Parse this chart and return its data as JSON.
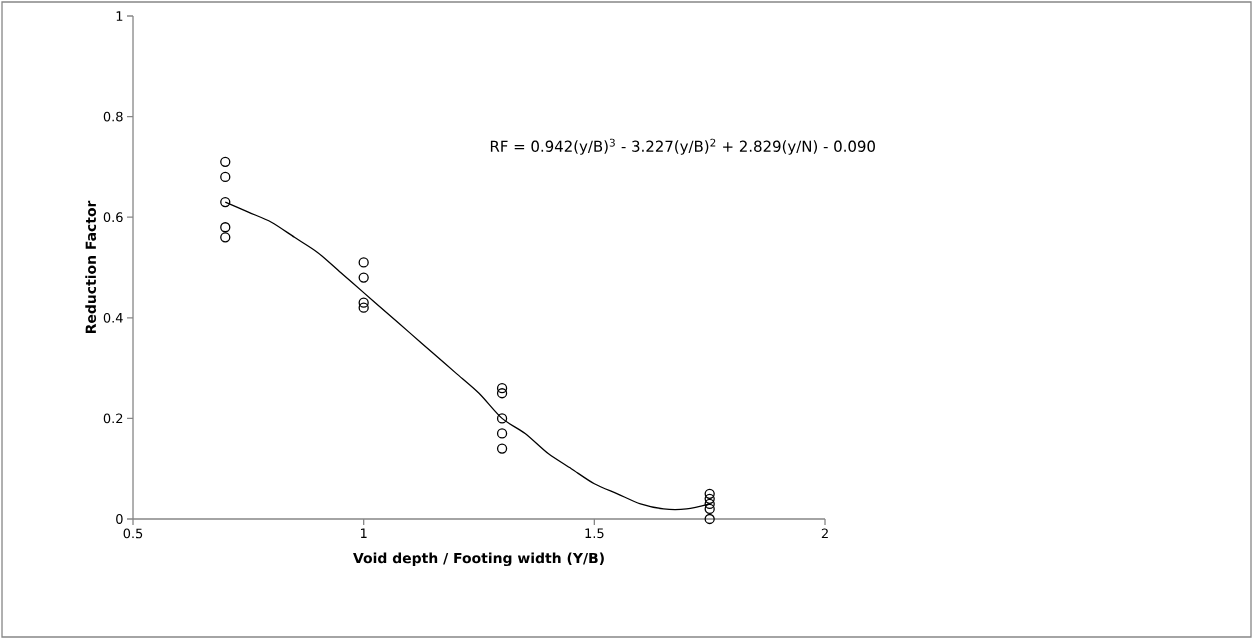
{
  "chart_data": {
    "type": "scatter",
    "xlabel": "Void depth / Footing width (Y/B)",
    "ylabel": "Reduction Factor",
    "annotations": [
      "RF = 0.942(y/B)$^{3}$ - 3.227(y/B)$^{2}$ + 2.829(y/N) - 0.090"
    ],
    "xlim": [
      0.5,
      2
    ],
    "xticks": [
      0.5,
      1,
      1.5,
      2
    ],
    "ylim": [
      0,
      1
    ],
    "yticks": [
      0,
      0.2,
      0.4,
      0.6,
      0.8,
      1
    ],
    "grid": false,
    "series": [
      {
        "color": "#000000",
        "marker": "circle",
        "x": [
          0.7,
          0.7,
          0.7,
          0.7,
          0.7,
          1,
          1,
          1,
          1,
          1.3,
          1.3,
          1.3,
          1.3,
          1.3,
          1.75,
          1.75,
          1.75,
          1.75,
          1.75
        ],
        "values": [
          0.71,
          0.68,
          0.63,
          0.58,
          0.56,
          0.51,
          0.48,
          0.43,
          0.42,
          0.26,
          0.25,
          0.2,
          0.17,
          0.14,
          0.05,
          0.04,
          0.03,
          0.02,
          0.0
        ]
      },
      {
        "type": "line",
        "color": "#000000",
        "marker": "none",
        "line_style": "solid",
        "x": [
          0.7,
          0.75,
          0.8,
          0.85,
          0.9,
          0.95,
          1.0,
          1.05,
          1.1,
          1.15,
          1.2,
          1.25,
          1.3,
          1.35,
          1.4,
          1.45,
          1.5,
          1.55,
          1.6,
          1.65,
          1.7,
          1.75
        ],
        "values": [
          0.63,
          0.61,
          0.59,
          0.56,
          0.53,
          0.49,
          0.45,
          0.41,
          0.37,
          0.33,
          0.29,
          0.25,
          0.2,
          0.17,
          0.13,
          0.1,
          0.07,
          0.05,
          0.03,
          0.02,
          0.02,
          0.03
        ]
      }
    ]
  }
}
